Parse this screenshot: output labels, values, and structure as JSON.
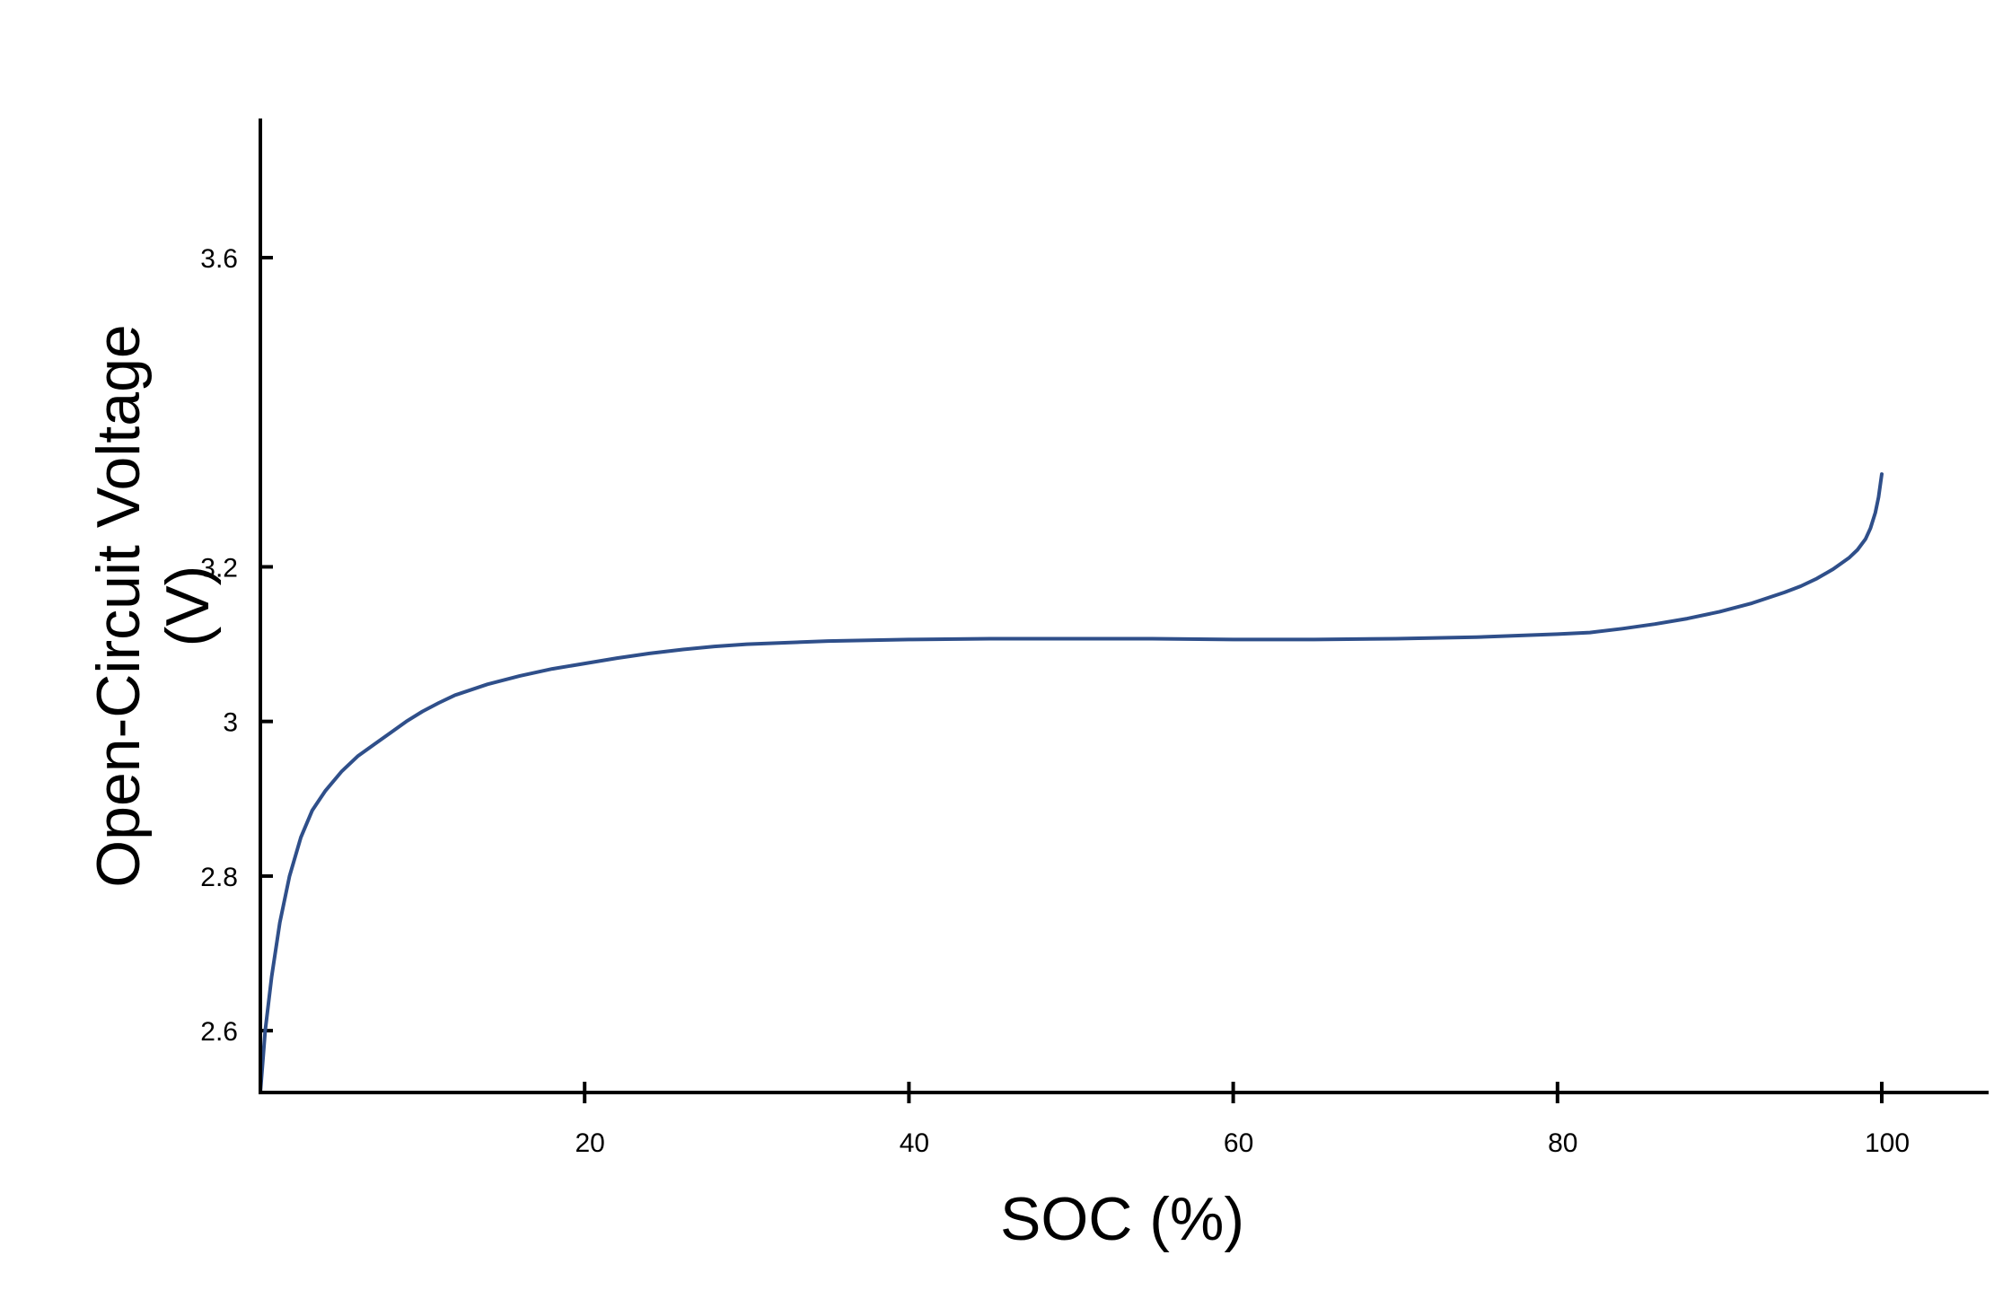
{
  "chart_data": {
    "type": "line",
    "title": "",
    "xlabel": "SOC (%)",
    "ylabel_lines": [
      "Open-Circuit Voltage",
      "(V)"
    ],
    "xlim": [
      0,
      105
    ],
    "ylim": [
      2.52,
      3.78
    ],
    "x_ticks": [
      {
        "value": 20,
        "label": "20"
      },
      {
        "value": 40,
        "label": "40"
      },
      {
        "value": 60,
        "label": "60"
      },
      {
        "value": 80,
        "label": "80"
      },
      {
        "value": 100,
        "label": "100"
      }
    ],
    "y_ticks": [
      {
        "value": 2.6,
        "label": "2.6"
      },
      {
        "value": 2.8,
        "label": "2.8"
      },
      {
        "value": 3.0,
        "label": "3"
      },
      {
        "value": 3.2,
        "label": "3.2"
      },
      {
        "value": 3.6,
        "label": "3.6"
      }
    ],
    "grid": false,
    "line_color": "#2f4f8a",
    "series": [
      {
        "x": [
          0,
          0.3,
          0.7,
          1.2,
          1.8,
          2.5,
          3.2,
          4.0,
          5.0,
          6.0,
          7.0,
          8.0,
          9.0,
          10.0,
          11.0,
          12.0,
          14.0,
          16.0,
          18.0,
          20.0,
          22.0,
          24.0,
          26.0,
          28.0,
          30.0,
          35.0,
          40.0,
          45.0,
          50.0,
          55.0,
          60.0,
          65.0,
          70.0,
          75.0,
          80.0,
          82.0,
          84.0,
          86.0,
          88.0,
          90.0,
          92.0,
          94.0,
          95.0,
          96.0,
          97.0,
          98.0,
          98.5,
          99.0,
          99.3,
          99.6,
          99.8,
          100.0
        ],
        "y": [
          2.52,
          2.6,
          2.67,
          2.74,
          2.8,
          2.85,
          2.885,
          2.91,
          2.935,
          2.955,
          2.97,
          2.985,
          3.0,
          3.013,
          3.024,
          3.034,
          3.048,
          3.059,
          3.068,
          3.075,
          3.082,
          3.088,
          3.093,
          3.097,
          3.1,
          3.104,
          3.106,
          3.107,
          3.107,
          3.107,
          3.106,
          3.106,
          3.107,
          3.109,
          3.113,
          3.115,
          3.12,
          3.126,
          3.133,
          3.142,
          3.153,
          3.167,
          3.175,
          3.185,
          3.197,
          3.212,
          3.222,
          3.236,
          3.25,
          3.27,
          3.29,
          3.32
        ]
      }
    ]
  }
}
